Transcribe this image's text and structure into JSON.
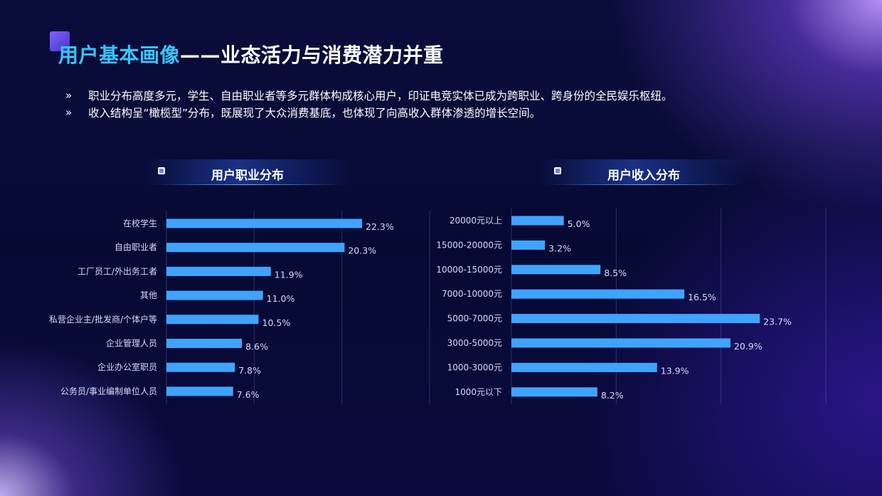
{
  "page": {
    "title_highlight": "用户基本画像",
    "title_rest": "——业态活力与消费潜力并重",
    "bullets": [
      "职业分布高度多元，学生、自由职业者等多元群体构成核心用户，印证电竞实体已成为跨职业、跨身份的全民娱乐枢纽。",
      "收入结构呈“橄榄型”分布，既展现了大众消费基底，也体现了向高收入群体渗透的增长空间。"
    ],
    "bullet_icon": "double-chevron-right-icon"
  },
  "colors": {
    "bar": "#3fa4ff",
    "title_highlight": "#36c5ff",
    "text": "#ffffff",
    "label": "#d6dcff"
  },
  "chart_data": [
    {
      "type": "bar",
      "orientation": "horizontal",
      "title": "用户职业分布",
      "categories": [
        "在校学生",
        "自由职业者",
        "工厂员工/外出务工者",
        "其他",
        "私营企业主/批发商/个体户等",
        "企业管理人员",
        "企业办公室职员",
        "公务员/事业编制单位人员"
      ],
      "values": [
        22.3,
        20.3,
        11.9,
        11.0,
        10.5,
        8.6,
        7.8,
        7.6
      ],
      "labels": [
        "22.3%",
        "20.3%",
        "11.9%",
        "11.0%",
        "10.5%",
        "8.6%",
        "7.8%",
        "7.6%"
      ],
      "xlim": [
        0,
        30
      ],
      "grid": true
    },
    {
      "type": "bar",
      "orientation": "horizontal",
      "title": "用户收入分布",
      "categories": [
        "20000元以上",
        "15000-20000元",
        "10000-15000元",
        "7000-10000元",
        "5000-7000元",
        "3000-5000元",
        "1000-3000元",
        "1000元以下"
      ],
      "values": [
        5.0,
        3.2,
        8.5,
        16.5,
        23.7,
        20.9,
        13.9,
        8.2
      ],
      "labels": [
        "5.0%",
        "3.2%",
        "8.5%",
        "16.5%",
        "23.7%",
        "20.9%",
        "13.9%",
        "8.2%"
      ],
      "xlim": [
        0,
        30
      ],
      "grid": true
    }
  ]
}
